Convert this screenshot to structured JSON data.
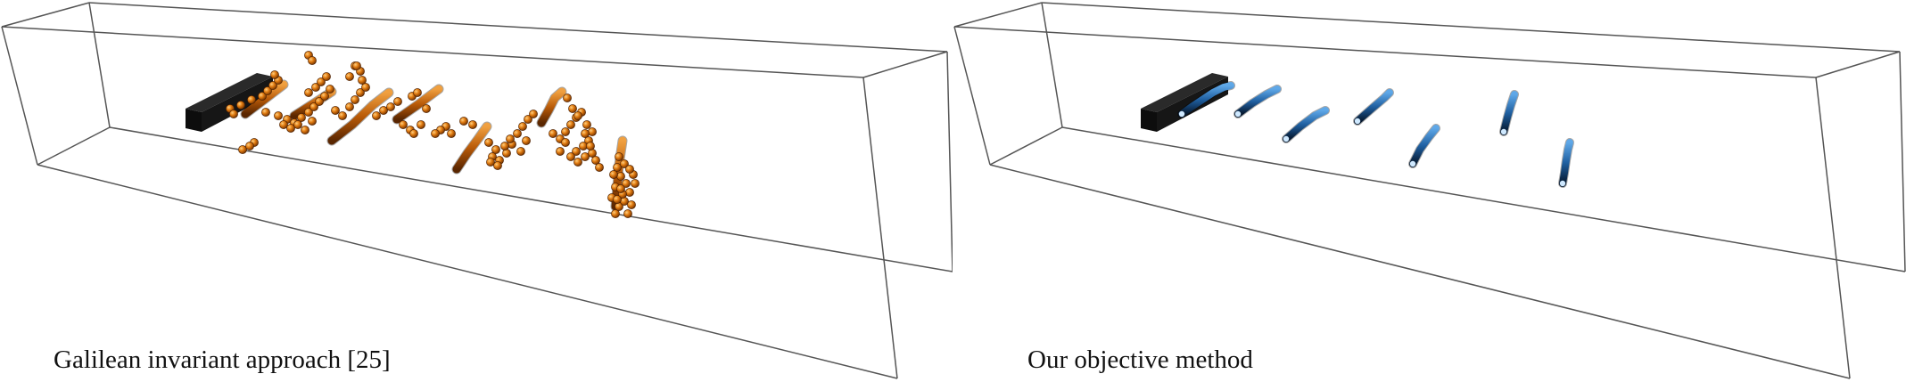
{
  "panels": [
    {
      "id": "left",
      "caption": "Galilean invariant approach [25]",
      "style": "orange-spheres",
      "colors": {
        "highlight": "#ffc266",
        "mid": "#e07a10",
        "shadow": "#6e2f00"
      }
    },
    {
      "id": "right",
      "caption": "Our objective method",
      "style": "blue-tubes",
      "colors": {
        "highlight": "#9fd3ff",
        "mid": "#1f5fa0",
        "shadow": "#06182e"
      }
    }
  ],
  "obstacle_color": "#0d0d0d",
  "box_edge_color": "#555555"
}
